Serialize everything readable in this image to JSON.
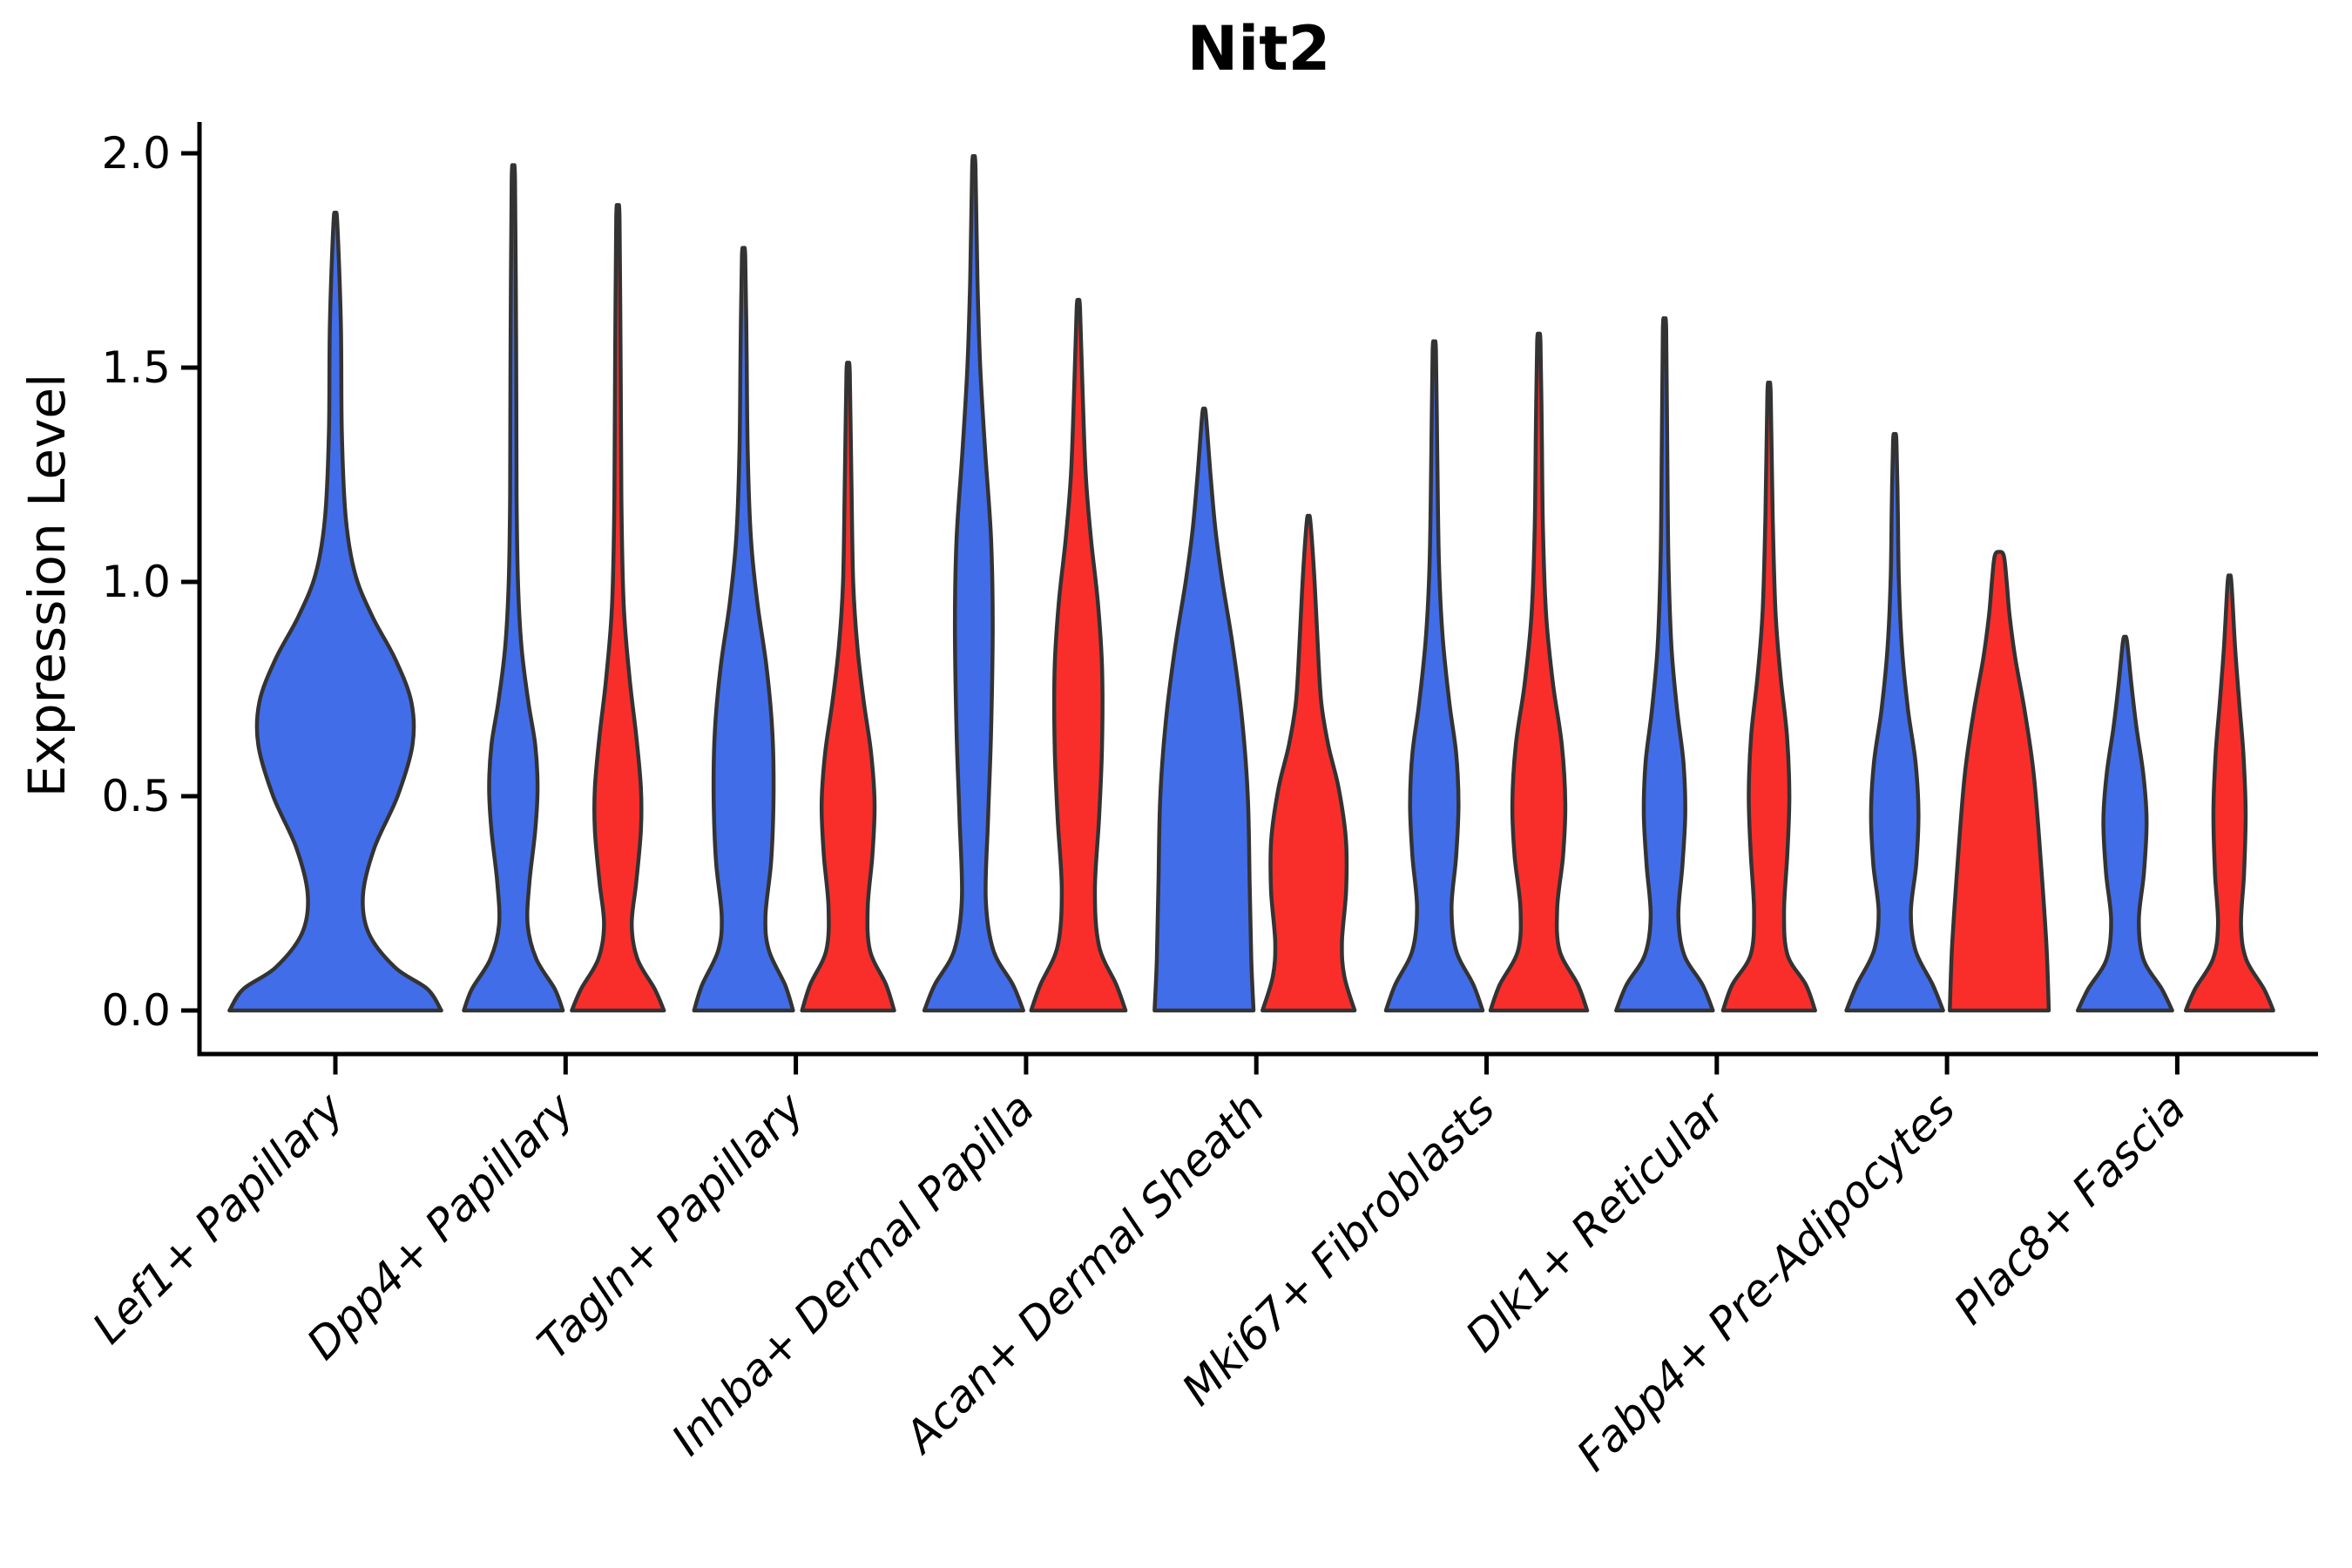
{
  "title": "Nit2",
  "axes": {
    "ylabel": "Expression Level",
    "ytick_labels": [
      "0.0",
      "0.5",
      "1.0",
      "1.5",
      "2.0"
    ]
  },
  "colors": {
    "blue": "#426DE9",
    "red": "#F92E2B",
    "outline": "#333333",
    "axis": "#000000",
    "background": "#ffffff"
  },
  "chart_data": {
    "type": "violin",
    "title": "Nit2",
    "xlabel": "",
    "ylabel": "Expression Level",
    "yticks": [
      0.0,
      0.5,
      1.0,
      1.5,
      2.0
    ],
    "ylim": [
      -0.1,
      2.07
    ],
    "grid": false,
    "legend": "none",
    "split_colors": {
      "left": "#426DE9",
      "right": "#F92E2B"
    },
    "categories": [
      "Lef1+ Papillary",
      "Dpp4+ Papillary",
      "Tagln+ Papillary",
      "Inhba+ Dermal Papilla",
      "Acan+ Dermal Sheath",
      "Mki67+ Fibroblasts",
      "Dlk1+ Reticular",
      "Fabp4+ Pre-Adipocytes",
      "Plac8+ Fascia"
    ],
    "violins": [
      {
        "category_index": 0,
        "category": "Lef1+ Papillary",
        "side": "center",
        "color_key": "blue",
        "single": true,
        "max_expression": 1.84,
        "profile": [
          [
            0,
            0.46
          ],
          [
            0.05,
            0.4
          ],
          [
            0.1,
            0.26
          ],
          [
            0.18,
            0.145
          ],
          [
            0.27,
            0.12
          ],
          [
            0.38,
            0.17
          ],
          [
            0.5,
            0.27
          ],
          [
            0.62,
            0.335
          ],
          [
            0.72,
            0.33
          ],
          [
            0.82,
            0.26
          ],
          [
            0.92,
            0.16
          ],
          [
            1.02,
            0.085
          ],
          [
            1.15,
            0.045
          ],
          [
            1.35,
            0.028
          ],
          [
            1.6,
            0.024
          ],
          [
            1.84,
            0.008
          ]
        ]
      },
      {
        "category_index": 1,
        "category": "Dpp4+ Papillary",
        "side": "left",
        "color_key": "blue",
        "single": false,
        "max_expression": 1.94,
        "profile": [
          [
            0,
            0.215
          ],
          [
            0.05,
            0.18
          ],
          [
            0.12,
            0.1
          ],
          [
            0.2,
            0.062
          ],
          [
            0.3,
            0.07
          ],
          [
            0.42,
            0.095
          ],
          [
            0.52,
            0.105
          ],
          [
            0.62,
            0.095
          ],
          [
            0.72,
            0.065
          ],
          [
            0.85,
            0.035
          ],
          [
            1.0,
            0.02
          ],
          [
            1.2,
            0.014
          ],
          [
            1.55,
            0.012
          ],
          [
            1.94,
            0.007
          ]
        ]
      },
      {
        "category_index": 1,
        "category": "Dpp4+ Papillary",
        "side": "right",
        "color_key": "red",
        "single": false,
        "max_expression": 1.85,
        "profile": [
          [
            0,
            0.2
          ],
          [
            0.05,
            0.16
          ],
          [
            0.12,
            0.085
          ],
          [
            0.2,
            0.06
          ],
          [
            0.3,
            0.08
          ],
          [
            0.42,
            0.1
          ],
          [
            0.52,
            0.1
          ],
          [
            0.64,
            0.08
          ],
          [
            0.78,
            0.05
          ],
          [
            0.95,
            0.025
          ],
          [
            1.2,
            0.015
          ],
          [
            1.5,
            0.012
          ],
          [
            1.85,
            0.007
          ]
        ]
      },
      {
        "category_index": 2,
        "category": "Tagln+ Papillary",
        "side": "left",
        "color_key": "blue",
        "single": false,
        "max_expression": 1.76,
        "profile": [
          [
            0,
            0.215
          ],
          [
            0.06,
            0.18
          ],
          [
            0.14,
            0.11
          ],
          [
            0.22,
            0.095
          ],
          [
            0.35,
            0.12
          ],
          [
            0.5,
            0.13
          ],
          [
            0.65,
            0.125
          ],
          [
            0.8,
            0.1
          ],
          [
            0.95,
            0.06
          ],
          [
            1.1,
            0.032
          ],
          [
            1.3,
            0.018
          ],
          [
            1.55,
            0.013
          ],
          [
            1.76,
            0.007
          ]
        ]
      },
      {
        "category_index": 2,
        "category": "Tagln+ Papillary",
        "side": "right",
        "color_key": "red",
        "single": false,
        "max_expression": 1.49,
        "profile": [
          [
            0,
            0.2
          ],
          [
            0.06,
            0.165
          ],
          [
            0.14,
            0.095
          ],
          [
            0.24,
            0.085
          ],
          [
            0.36,
            0.105
          ],
          [
            0.48,
            0.115
          ],
          [
            0.6,
            0.1
          ],
          [
            0.72,
            0.068
          ],
          [
            0.85,
            0.04
          ],
          [
            1.0,
            0.022
          ],
          [
            1.25,
            0.014
          ],
          [
            1.49,
            0.007
          ]
        ]
      },
      {
        "category_index": 3,
        "category": "Inhba+ Dermal Papilla",
        "side": "left",
        "color_key": "blue",
        "single": false,
        "max_expression": 1.97,
        "profile": [
          [
            0,
            0.215
          ],
          [
            0.06,
            0.17
          ],
          [
            0.14,
            0.085
          ],
          [
            0.26,
            0.052
          ],
          [
            0.45,
            0.062
          ],
          [
            0.65,
            0.075
          ],
          [
            0.9,
            0.082
          ],
          [
            1.1,
            0.075
          ],
          [
            1.3,
            0.05
          ],
          [
            1.5,
            0.028
          ],
          [
            1.7,
            0.016
          ],
          [
            1.97,
            0.007
          ]
        ]
      },
      {
        "category_index": 3,
        "category": "Inhba+ Dermal Papilla",
        "side": "right",
        "color_key": "red",
        "single": false,
        "max_expression": 1.64,
        "profile": [
          [
            0,
            0.205
          ],
          [
            0.06,
            0.165
          ],
          [
            0.15,
            0.09
          ],
          [
            0.28,
            0.072
          ],
          [
            0.45,
            0.09
          ],
          [
            0.62,
            0.103
          ],
          [
            0.8,
            0.103
          ],
          [
            0.95,
            0.085
          ],
          [
            1.1,
            0.055
          ],
          [
            1.25,
            0.032
          ],
          [
            1.45,
            0.018
          ],
          [
            1.64,
            0.007
          ]
        ]
      },
      {
        "category_index": 4,
        "category": "Acan+ Dermal Sheath",
        "side": "left",
        "color_key": "blue",
        "single": false,
        "max_expression": 1.39,
        "profile": [
          [
            0,
            0.215
          ],
          [
            0.12,
            0.205
          ],
          [
            0.3,
            0.198
          ],
          [
            0.5,
            0.19
          ],
          [
            0.68,
            0.165
          ],
          [
            0.85,
            0.125
          ],
          [
            1.0,
            0.08
          ],
          [
            1.12,
            0.05
          ],
          [
            1.25,
            0.028
          ],
          [
            1.39,
            0.008
          ]
        ]
      },
      {
        "category_index": 4,
        "category": "Acan+ Dermal Sheath",
        "side": "right",
        "color_key": "red",
        "single": false,
        "max_expression": 1.14,
        "profile": [
          [
            0,
            0.2
          ],
          [
            0.08,
            0.155
          ],
          [
            0.16,
            0.145
          ],
          [
            0.28,
            0.163
          ],
          [
            0.4,
            0.162
          ],
          [
            0.52,
            0.13
          ],
          [
            0.62,
            0.085
          ],
          [
            0.72,
            0.055
          ],
          [
            0.85,
            0.04
          ],
          [
            1.0,
            0.026
          ],
          [
            1.14,
            0.008
          ]
        ]
      },
      {
        "category_index": 5,
        "category": "Mki67+ Fibroblasts",
        "side": "left",
        "color_key": "blue",
        "single": false,
        "max_expression": 1.54,
        "profile": [
          [
            0,
            0.21
          ],
          [
            0.06,
            0.17
          ],
          [
            0.14,
            0.095
          ],
          [
            0.24,
            0.075
          ],
          [
            0.36,
            0.095
          ],
          [
            0.48,
            0.105
          ],
          [
            0.6,
            0.095
          ],
          [
            0.72,
            0.065
          ],
          [
            0.88,
            0.035
          ],
          [
            1.05,
            0.02
          ],
          [
            1.3,
            0.013
          ],
          [
            1.54,
            0.007
          ]
        ]
      },
      {
        "category_index": 5,
        "category": "Mki67+ Fibroblasts",
        "side": "right",
        "color_key": "red",
        "single": false,
        "max_expression": 1.56,
        "profile": [
          [
            0,
            0.21
          ],
          [
            0.06,
            0.17
          ],
          [
            0.14,
            0.09
          ],
          [
            0.24,
            0.08
          ],
          [
            0.36,
            0.105
          ],
          [
            0.48,
            0.115
          ],
          [
            0.62,
            0.1
          ],
          [
            0.76,
            0.062
          ],
          [
            0.92,
            0.032
          ],
          [
            1.12,
            0.018
          ],
          [
            1.35,
            0.013
          ],
          [
            1.56,
            0.007
          ]
        ]
      },
      {
        "category_index": 6,
        "category": "Dlk1+ Reticular",
        "side": "left",
        "color_key": "blue",
        "single": false,
        "max_expression": 1.59,
        "profile": [
          [
            0,
            0.21
          ],
          [
            0.06,
            0.165
          ],
          [
            0.13,
            0.085
          ],
          [
            0.22,
            0.06
          ],
          [
            0.34,
            0.078
          ],
          [
            0.46,
            0.09
          ],
          [
            0.58,
            0.082
          ],
          [
            0.7,
            0.055
          ],
          [
            0.85,
            0.03
          ],
          [
            1.05,
            0.017
          ],
          [
            1.3,
            0.012
          ],
          [
            1.59,
            0.007
          ]
        ]
      },
      {
        "category_index": 6,
        "category": "Dlk1+ Reticular",
        "side": "right",
        "color_key": "red",
        "single": false,
        "max_expression": 1.44,
        "profile": [
          [
            0,
            0.2
          ],
          [
            0.06,
            0.16
          ],
          [
            0.13,
            0.08
          ],
          [
            0.23,
            0.065
          ],
          [
            0.37,
            0.08
          ],
          [
            0.5,
            0.088
          ],
          [
            0.64,
            0.078
          ],
          [
            0.78,
            0.05
          ],
          [
            0.93,
            0.028
          ],
          [
            1.15,
            0.016
          ],
          [
            1.44,
            0.007
          ]
        ]
      },
      {
        "category_index": 7,
        "category": "Fabp4+ Pre-Adipocytes",
        "side": "left",
        "color_key": "blue",
        "single": false,
        "max_expression": 1.33,
        "profile": [
          [
            0,
            0.21
          ],
          [
            0.06,
            0.165
          ],
          [
            0.14,
            0.09
          ],
          [
            0.23,
            0.07
          ],
          [
            0.34,
            0.093
          ],
          [
            0.46,
            0.103
          ],
          [
            0.58,
            0.09
          ],
          [
            0.7,
            0.058
          ],
          [
            0.84,
            0.032
          ],
          [
            1.0,
            0.018
          ],
          [
            1.18,
            0.013
          ],
          [
            1.33,
            0.007
          ]
        ]
      },
      {
        "category_index": 7,
        "category": "Fabp4+ Pre-Adipocytes",
        "side": "right",
        "color_key": "red",
        "single": false,
        "max_expression": 1.06,
        "profile": [
          [
            0,
            0.215
          ],
          [
            0.15,
            0.205
          ],
          [
            0.35,
            0.18
          ],
          [
            0.55,
            0.15
          ],
          [
            0.7,
            0.11
          ],
          [
            0.82,
            0.07
          ],
          [
            0.92,
            0.045
          ],
          [
            1.0,
            0.032
          ],
          [
            1.06,
            0.02
          ]
        ]
      },
      {
        "category_index": 8,
        "category": "Plac8+ Fascia",
        "side": "left",
        "color_key": "blue",
        "single": false,
        "max_expression": 0.86,
        "profile": [
          [
            0,
            0.205
          ],
          [
            0.05,
            0.16
          ],
          [
            0.12,
            0.08
          ],
          [
            0.21,
            0.06
          ],
          [
            0.32,
            0.082
          ],
          [
            0.44,
            0.094
          ],
          [
            0.55,
            0.08
          ],
          [
            0.66,
            0.05
          ],
          [
            0.76,
            0.028
          ],
          [
            0.86,
            0.009
          ]
        ]
      },
      {
        "category_index": 8,
        "category": "Plac8+ Fascia",
        "side": "right",
        "color_key": "red",
        "single": false,
        "max_expression": 1.0,
        "profile": [
          [
            0,
            0.19
          ],
          [
            0.05,
            0.15
          ],
          [
            0.12,
            0.072
          ],
          [
            0.2,
            0.05
          ],
          [
            0.32,
            0.063
          ],
          [
            0.46,
            0.07
          ],
          [
            0.6,
            0.06
          ],
          [
            0.72,
            0.042
          ],
          [
            0.85,
            0.024
          ],
          [
            1.0,
            0.008
          ]
        ]
      }
    ]
  }
}
